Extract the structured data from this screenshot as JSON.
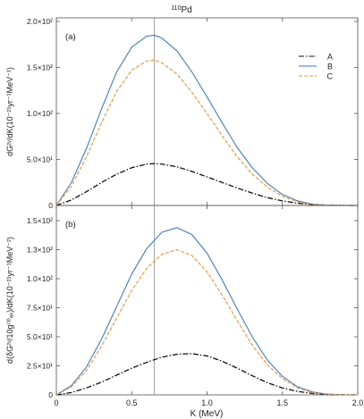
{
  "figure": {
    "title_sup": "110",
    "title_main": "Pd",
    "xlabel": "K (MeV)",
    "line_colors": {
      "A": "#111111",
      "B": "#3a7dc4",
      "C": "#f0912c",
      "vline": "#8c8c8c"
    }
  },
  "chart_data": [
    {
      "type": "line",
      "panel_label": "(a)",
      "ylabel": "dG²ᵛ/dK(10⁻²¹yr⁻¹MeV⁻¹)",
      "xlim": [
        0,
        2.0
      ],
      "ylim": [
        0,
        200
      ],
      "x_ticks": [
        0,
        0.5,
        1.0,
        1.5,
        2.0
      ],
      "x_tick_labels": [
        "0",
        "0.5",
        "1.0",
        "1.5",
        "2.0"
      ],
      "y_ticks": [
        0,
        50,
        100,
        150,
        200
      ],
      "y_tick_labels": [
        "0",
        "5.0×10¹",
        "1.0×10²",
        "1.5×10²",
        "2.0×10²"
      ],
      "vline_x": 0.65,
      "legend": "top-right",
      "x": [
        0,
        0.1,
        0.2,
        0.3,
        0.4,
        0.5,
        0.6,
        0.65,
        0.7,
        0.8,
        0.9,
        1.0,
        1.1,
        1.2,
        1.3,
        1.4,
        1.5,
        1.6,
        1.7,
        1.8,
        1.9,
        2.0
      ],
      "series": [
        {
          "name": "A",
          "style": "dashdot",
          "values": [
            0,
            6,
            15,
            25,
            34,
            41,
            45,
            45.5,
            45,
            42,
            37,
            31,
            25,
            19,
            13.5,
            8.5,
            5,
            2.5,
            1,
            0.3,
            0.1,
            0
          ]
        },
        {
          "name": "B",
          "style": "solid",
          "values": [
            0,
            25,
            62,
            105,
            145,
            172,
            184,
            185,
            182,
            168,
            145,
            118,
            90,
            63,
            41,
            24,
            12,
            5,
            1.5,
            0.3,
            0.1,
            0
          ]
        },
        {
          "name": "C",
          "style": "dashed",
          "values": [
            0,
            21,
            53,
            90,
            124,
            147,
            157,
            158,
            155,
            143,
            123,
            100,
            76,
            53,
            34,
            20,
            10,
            4,
            1.2,
            0.2,
            0.1,
            0
          ]
        }
      ]
    },
    {
      "type": "line",
      "panel_label": "(b)",
      "ylabel": "d(δG²ᵛ/10g⁽³⁾ₐₓ)/dK(10⁻²¹yr⁻¹MeV⁻²)",
      "xlim": [
        0,
        2.0
      ],
      "ylim": [
        0,
        160
      ],
      "x_ticks": [
        0,
        0.5,
        1.0,
        1.5,
        2.0
      ],
      "x_tick_labels": [
        "0",
        "0.5",
        "1.0",
        "1.5",
        "2.0"
      ],
      "y_ticks": [
        0,
        25,
        50,
        75,
        100,
        125,
        150
      ],
      "y_tick_labels": [
        "0",
        "2.5×10¹",
        "5.0×10¹",
        "7.5×10¹",
        "1.0×10²",
        "1.3×10²",
        "1.5×10²"
      ],
      "vline_x": 0.65,
      "x": [
        0,
        0.1,
        0.2,
        0.3,
        0.4,
        0.5,
        0.6,
        0.7,
        0.8,
        0.9,
        1.0,
        1.1,
        1.2,
        1.3,
        1.4,
        1.5,
        1.6,
        1.7,
        1.8,
        1.9,
        2.0
      ],
      "series": [
        {
          "name": "A",
          "style": "dashdot",
          "values": [
            0,
            2,
            6,
            11,
            17,
            23,
            28,
            32.5,
            35,
            35.5,
            33.5,
            29,
            23,
            16.5,
            10.5,
            6,
            3,
            1.2,
            0.4,
            0.1,
            0
          ]
        },
        {
          "name": "B",
          "style": "solid",
          "values": [
            0,
            8,
            24,
            48,
            76,
            104,
            126,
            140,
            144,
            138,
            122,
            99,
            74,
            50,
            30,
            16,
            7,
            2.5,
            0.6,
            0.1,
            0
          ]
        },
        {
          "name": "C",
          "style": "dashed",
          "values": [
            0,
            7,
            21,
            42,
            66,
            90,
            109,
            121,
            125,
            120,
            106,
            86,
            64,
            43,
            26,
            14,
            6,
            2,
            0.5,
            0.1,
            0
          ]
        }
      ]
    }
  ]
}
